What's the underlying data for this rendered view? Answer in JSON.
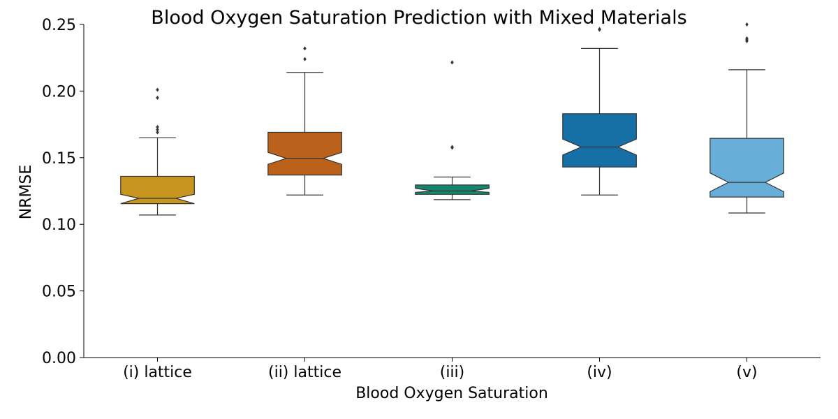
{
  "chart_data": {
    "type": "box",
    "title": "Blood Oxygen Saturation Prediction with Mixed Materials",
    "xlabel": "Blood Oxygen Saturation",
    "ylabel": "NRMSE",
    "ylim": [
      0,
      0.25
    ],
    "yticks": [
      0.0,
      0.05,
      0.1,
      0.15,
      0.2,
      0.25
    ],
    "ytick_labels": [
      "0.00",
      "0.05",
      "0.10",
      "0.15",
      "0.20",
      "0.25"
    ],
    "grid": false,
    "notched": true,
    "categories": [
      "(i) lattice",
      "(ii) lattice",
      "(iii)",
      "(iv)",
      "(v)"
    ],
    "boxes": [
      {
        "category": "(i) lattice",
        "whisker_low": 0.107,
        "q1": 0.1155,
        "median": 0.1195,
        "q3": 0.136,
        "whisker_high": 0.165,
        "notch_low": 0.1155,
        "notch_high": 0.1225,
        "outliers": [
          0.169,
          0.171,
          0.173,
          0.195,
          0.201
        ],
        "color": "#C8951E"
      },
      {
        "category": "(ii) lattice",
        "whisker_low": 0.122,
        "q1": 0.137,
        "median": 0.1495,
        "q3": 0.169,
        "whisker_high": 0.214,
        "notch_low": 0.145,
        "notch_high": 0.154,
        "outliers": [
          0.224,
          0.232
        ],
        "color": "#BA621C"
      },
      {
        "category": "(iii)",
        "whisker_low": 0.1185,
        "q1": 0.1225,
        "median": 0.125,
        "q3": 0.1295,
        "whisker_high": 0.1355,
        "notch_low": 0.124,
        "notch_high": 0.127,
        "outliers": [
          0.1575,
          0.158,
          0.2215
        ],
        "color": "#13876D"
      },
      {
        "category": "(iv)",
        "whisker_low": 0.122,
        "q1": 0.143,
        "median": 0.158,
        "q3": 0.183,
        "whisker_high": 0.232,
        "notch_low": 0.152,
        "notch_high": 0.164,
        "outliers": [
          0.246,
          0.2465
        ],
        "color": "#1670A6"
      },
      {
        "category": "(v)",
        "whisker_low": 0.1085,
        "q1": 0.1205,
        "median": 0.1315,
        "q3": 0.1645,
        "whisker_high": 0.216,
        "notch_low": 0.1245,
        "notch_high": 0.1385,
        "outliers": [
          0.2375,
          0.2385,
          0.2395,
          0.25
        ],
        "color": "#67AFD8"
      }
    ]
  }
}
